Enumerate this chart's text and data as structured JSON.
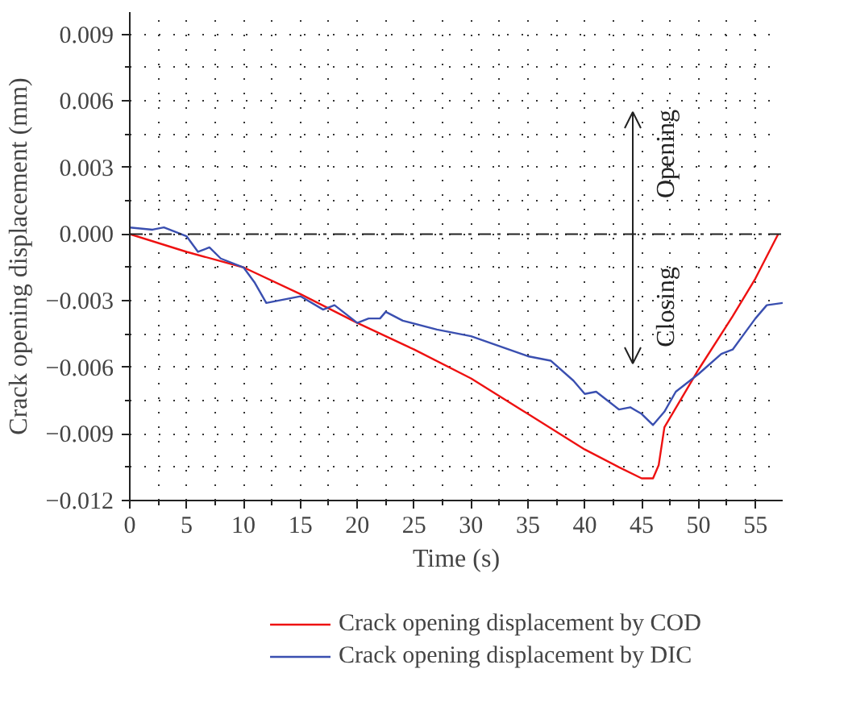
{
  "chart_data": {
    "type": "line",
    "xlabel": "Time (s)",
    "ylabel": "Crack opening displacement (mm)",
    "xlim": [
      0,
      57.4
    ],
    "ylim": [
      -0.012,
      0.01
    ],
    "xticks": [
      0,
      5,
      10,
      15,
      20,
      25,
      30,
      35,
      40,
      45,
      50,
      55
    ],
    "yticks": [
      {
        "value": -0.012,
        "label": "−0.012"
      },
      {
        "value": -0.009,
        "label": "−0.009"
      },
      {
        "value": -0.006,
        "label": "−0.006"
      },
      {
        "value": -0.003,
        "label": "−0.003"
      },
      {
        "value": 0,
        "label": "0.000"
      },
      {
        "value": 0.003,
        "label": "0.003"
      },
      {
        "value": 0.006,
        "label": "0.006"
      },
      {
        "value": 0.009,
        "label": "0.009"
      }
    ],
    "grid": true,
    "legend": "bottom",
    "line_style": "solid",
    "ref_lines": [
      {
        "axis": "y",
        "value": 0,
        "line_style": "dashed",
        "color": "#222222"
      }
    ],
    "annotations": [
      "Opening",
      "Closing"
    ],
    "series": [
      {
        "name": "Crack opening displacement by COD",
        "color": "#ee1111",
        "x": [
          0,
          5,
          10,
          15,
          20,
          25,
          30,
          35,
          40,
          43,
          45,
          46,
          46.5,
          47,
          50,
          53,
          55,
          57
        ],
        "values": [
          0,
          -0.0008,
          -0.0015,
          -0.0027,
          -0.004,
          -0.0052,
          -0.0065,
          -0.0081,
          -0.0097,
          -0.0105,
          -0.011,
          -0.011,
          -0.0104,
          -0.0087,
          -0.0061,
          -0.0037,
          -0.002,
          0
        ]
      },
      {
        "name": "Crack opening displacement by DIC",
        "color": "#3a4fb0",
        "x": [
          0,
          2,
          3,
          5,
          6,
          7,
          8,
          10,
          11,
          12,
          13,
          15,
          17,
          18,
          20,
          21,
          22,
          22.5,
          24,
          27,
          30,
          35,
          37,
          39,
          40,
          41,
          42,
          43,
          44,
          45,
          46,
          47,
          48,
          50,
          52,
          53,
          54,
          55,
          56,
          57.4
        ],
        "values": [
          0.0003,
          0.0002,
          0.0003,
          -0.0001,
          -0.0008,
          -0.0006,
          -0.0011,
          -0.0015,
          -0.0022,
          -0.0031,
          -0.003,
          -0.0028,
          -0.0034,
          -0.0032,
          -0.004,
          -0.0038,
          -0.0038,
          -0.0035,
          -0.0039,
          -0.0043,
          -0.0046,
          -0.0055,
          -0.0057,
          -0.0066,
          -0.0072,
          -0.0071,
          -0.0075,
          -0.0079,
          -0.0078,
          -0.0081,
          -0.0086,
          -0.008,
          -0.0071,
          -0.0063,
          -0.0054,
          -0.0052,
          -0.0045,
          -0.0038,
          -0.0032,
          -0.0031
        ]
      }
    ]
  }
}
